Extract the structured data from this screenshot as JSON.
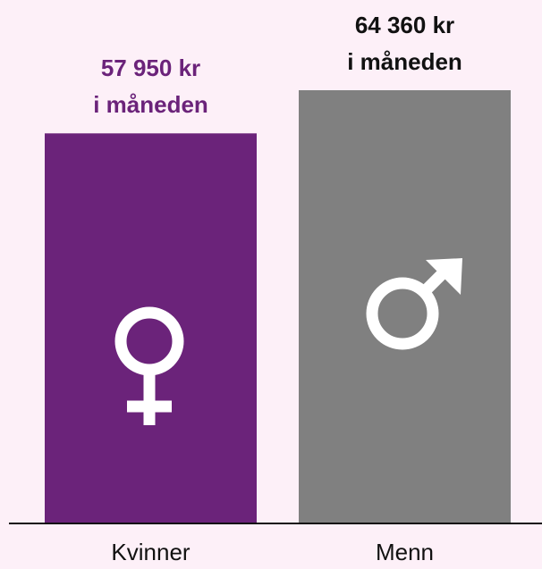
{
  "chart_data": {
    "type": "bar",
    "categories": [
      "Kvinner",
      "Menn"
    ],
    "values": [
      57950,
      64360
    ],
    "value_labels": [
      "57 950 kr",
      "64 360 kr"
    ],
    "value_label_suffix": "i måneden",
    "colors": [
      "#6b237a",
      "#808080"
    ],
    "label_colors": [
      "#6b237a",
      "#111111"
    ],
    "ylim": [
      0,
      70000
    ]
  }
}
